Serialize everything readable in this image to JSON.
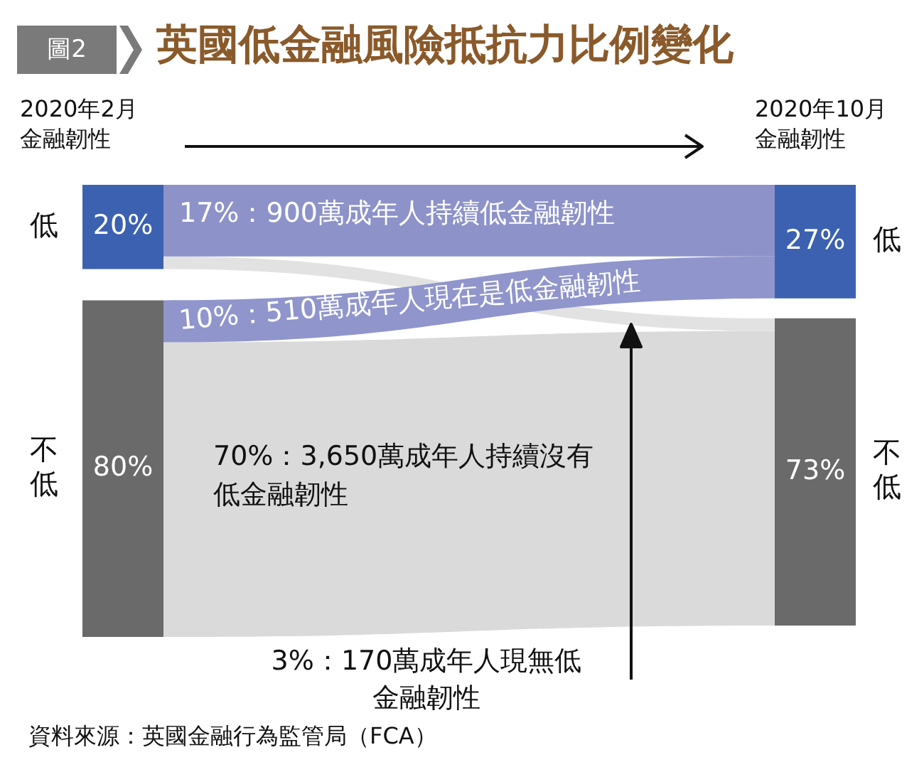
{
  "chart_data": {
    "type": "other",
    "title": "英國低金融風險抵抗力比例變化",
    "subtitle": "圖2",
    "categories": [
      "低",
      "不低"
    ],
    "series": [
      {
        "values": [
          20,
          80
        ],
        "colors": [
          "#3b61b0",
          "#6a6a6a"
        ],
        "value_labels": [
          "20%",
          "80%"
        ]
      },
      {
        "values": [
          27,
          73
        ],
        "colors": [
          "#3b61b0",
          "#6a6a6a"
        ],
        "value_labels": [
          "27%",
          "73%"
        ]
      },
      {
        "values": [
          17,
          3
        ],
        "colors": [
          "#8d92c9",
          "#e2e2e2"
        ],
        "value_labels": [
          "17%：900萬成年人持續低金融韌性",
          "3%：170萬成年人現無低金融韌性"
        ]
      },
      {
        "values": [
          10,
          70
        ],
        "colors": [
          "#9095cc",
          "#dadada"
        ],
        "value_labels": [
          "10%：510萬成年人現在是低金融韌性",
          "70%：3,650萬成年人持續沒有低金融韌性"
        ]
      }
    ],
    "annotations": [
      "2020年2月金融韌性",
      "2020年10月金融韌性",
      "資料來源：英國金融行為監管局（FCA）"
    ]
  }
}
